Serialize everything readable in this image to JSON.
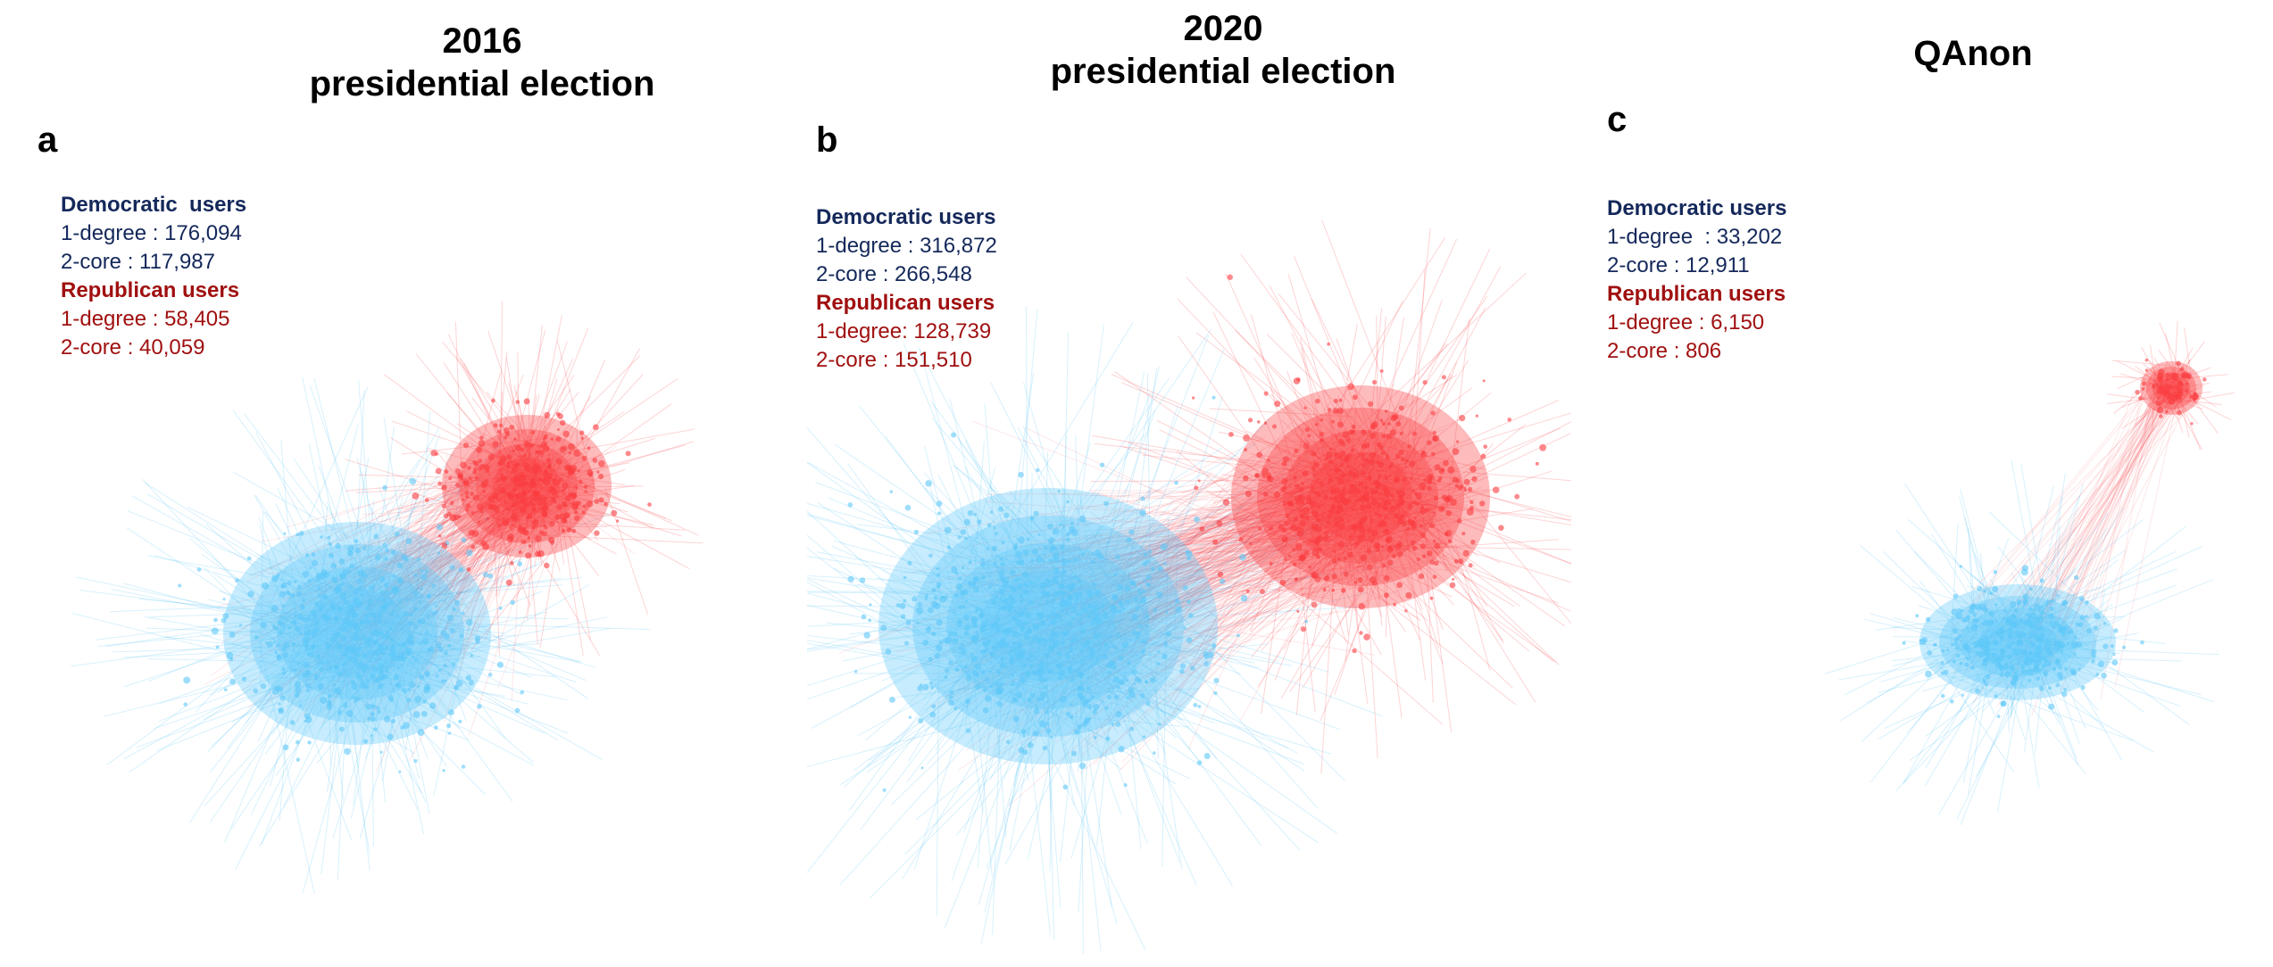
{
  "colors": {
    "democratic": "#5ec8f8",
    "republican": "#fa3c40",
    "democratic_text": "#14285a",
    "republican_text": "#a01010"
  },
  "panels": [
    {
      "letter": "a",
      "title": "2016\npresidential election",
      "democratic_header": "Democratic  users",
      "democratic_one_degree": "1-degree : 176,094",
      "democratic_two_core": "2-core : 117,987",
      "republican_header": "Republican users",
      "republican_one_degree": "1-degree : 58,405",
      "republican_two_core": "2-core : 40,059"
    },
    {
      "letter": "b",
      "title": "2020\npresidential election",
      "democratic_header": "Democratic users",
      "democratic_one_degree": "1-degree : 316,872",
      "democratic_two_core": "2-core : 266,548",
      "republican_header": "Republican users",
      "republican_one_degree": "1-degree: 128,739",
      "republican_two_core": "2-core : 151,510"
    },
    {
      "letter": "c",
      "title": "QAnon",
      "democratic_header": "Democratic users",
      "democratic_one_degree": "1-degree  : 33,202",
      "democratic_two_core": "2-core : 12,911",
      "republican_header": "Republican users",
      "republican_one_degree": "1-degree : 6,150",
      "republican_two_core": "2-core : 806"
    }
  ]
}
